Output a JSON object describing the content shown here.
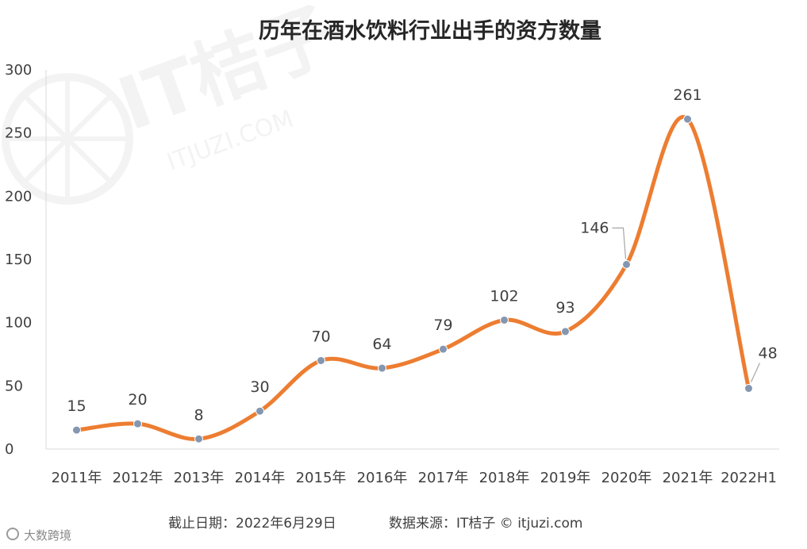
{
  "chart_data": {
    "type": "line",
    "title": "历年在酒水饮料行业出手的资方数量",
    "categories": [
      "2011年",
      "2012年",
      "2013年",
      "2014年",
      "2015年",
      "2016年",
      "2017年",
      "2018年",
      "2019年",
      "2020年",
      "2021年",
      "2022H1"
    ],
    "values": [
      15,
      20,
      8,
      30,
      70,
      64,
      79,
      102,
      93,
      146,
      261,
      48
    ],
    "data_labels": [
      "15",
      "20",
      "8",
      "30",
      "70",
      "64",
      "79",
      "102",
      "93",
      "146",
      "261",
      "48"
    ],
    "yticks": [
      "0",
      "50",
      "100",
      "150",
      "200",
      "250",
      "300"
    ],
    "ylim": [
      0,
      300
    ],
    "grid": false,
    "line_color": "#ED7D31",
    "marker_color": "#8497B0"
  },
  "footer": {
    "cutoff": "截止日期：2022年6月29日",
    "source": "数据来源：IT桔子 © itjuzi.com"
  },
  "watermark": {
    "brand": "IT桔子",
    "domain": "ITJUZI.COM",
    "corner": "大数跨境"
  }
}
